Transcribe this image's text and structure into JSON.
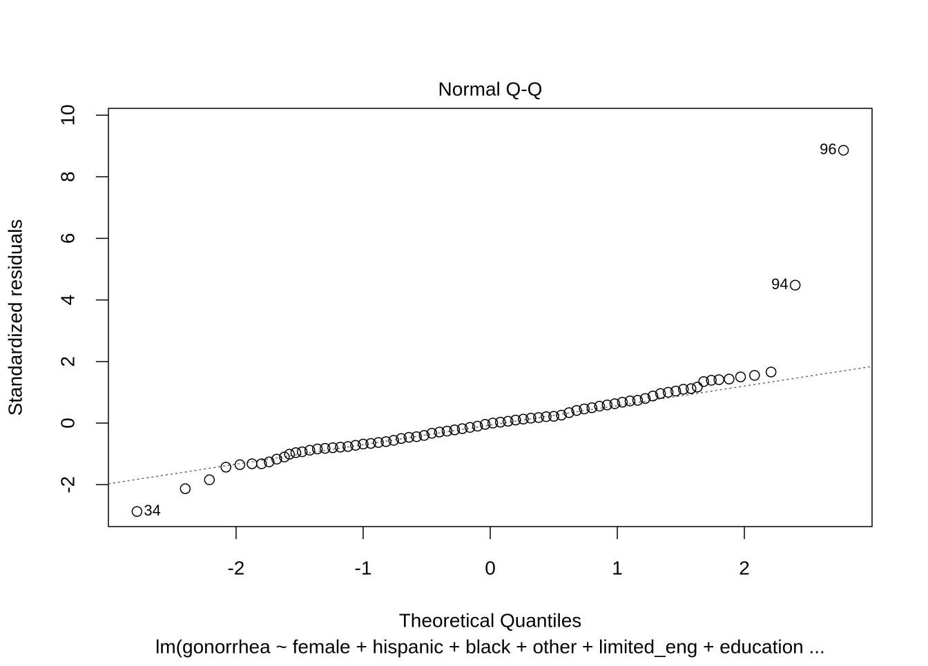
{
  "chart_data": {
    "type": "scatter",
    "title": "Normal Q-Q",
    "x_label": "Theoretical Quantiles",
    "y_label": "Standardized residuals",
    "subtitle": "lm(gonorrhea ~ female + hispanic + black + other + limited_eng + education  ...",
    "x": [
      -2.78,
      -2.4,
      -2.21,
      -2.08,
      -1.97,
      -1.875,
      -1.8,
      -1.74,
      -1.68,
      -1.62,
      -1.58,
      -1.53,
      -1.48,
      -1.42,
      -1.36,
      -1.3,
      -1.24,
      -1.18,
      -1.12,
      -1.06,
      -1.0,
      -0.94,
      -0.88,
      -0.82,
      -0.76,
      -0.7,
      -0.64,
      -0.58,
      -0.52,
      -0.46,
      -0.4,
      -0.34,
      -0.28,
      -0.22,
      -0.16,
      -0.1,
      -0.04,
      0.02,
      0.08,
      0.14,
      0.2,
      0.26,
      0.32,
      0.38,
      0.44,
      0.5,
      0.56,
      0.62,
      0.68,
      0.74,
      0.8,
      0.86,
      0.92,
      0.98,
      1.04,
      1.1,
      1.16,
      1.22,
      1.28,
      1.34,
      1.4,
      1.46,
      1.52,
      1.58,
      1.63,
      1.68,
      1.74,
      1.8,
      1.88,
      1.97,
      2.08,
      2.21,
      2.4,
      2.78
    ],
    "values": [
      -2.87,
      -2.13,
      -1.84,
      -1.43,
      -1.35,
      -1.32,
      -1.32,
      -1.26,
      -1.17,
      -1.1,
      -1.01,
      -0.96,
      -0.93,
      -0.88,
      -0.84,
      -0.82,
      -0.8,
      -0.78,
      -0.76,
      -0.72,
      -0.68,
      -0.66,
      -0.63,
      -0.6,
      -0.56,
      -0.5,
      -0.46,
      -0.44,
      -0.4,
      -0.33,
      -0.29,
      -0.26,
      -0.22,
      -0.18,
      -0.14,
      -0.1,
      -0.04,
      0.0,
      0.03,
      0.06,
      0.1,
      0.13,
      0.16,
      0.18,
      0.21,
      0.22,
      0.26,
      0.34,
      0.41,
      0.46,
      0.5,
      0.55,
      0.59,
      0.63,
      0.68,
      0.72,
      0.74,
      0.8,
      0.88,
      0.96,
      1.0,
      1.04,
      1.1,
      1.12,
      1.17,
      1.35,
      1.39,
      1.41,
      1.43,
      1.5,
      1.55,
      1.66,
      4.48,
      8.86
    ],
    "point_labels": [
      "34",
      null,
      null,
      null,
      null,
      null,
      null,
      null,
      null,
      null,
      null,
      null,
      null,
      null,
      null,
      null,
      null,
      null,
      null,
      null,
      null,
      null,
      null,
      null,
      null,
      null,
      null,
      null,
      null,
      null,
      null,
      null,
      null,
      null,
      null,
      null,
      null,
      null,
      null,
      null,
      null,
      null,
      null,
      null,
      null,
      null,
      null,
      null,
      null,
      null,
      null,
      null,
      null,
      null,
      null,
      null,
      null,
      null,
      null,
      null,
      null,
      null,
      null,
      null,
      null,
      null,
      null,
      null,
      null,
      null,
      null,
      null,
      "94",
      "96"
    ],
    "reference_line": {
      "x": [
        -3.005,
        3.005
      ],
      "y": [
        -1.97,
        1.84
      ]
    },
    "xlim": [
      -3.005,
      3.005
    ],
    "ylim": [
      -3.36,
      10.22
    ],
    "xticks": [
      -2,
      -1,
      0,
      1,
      2
    ],
    "yticks": [
      -2,
      0,
      2,
      4,
      6,
      8,
      10
    ]
  }
}
